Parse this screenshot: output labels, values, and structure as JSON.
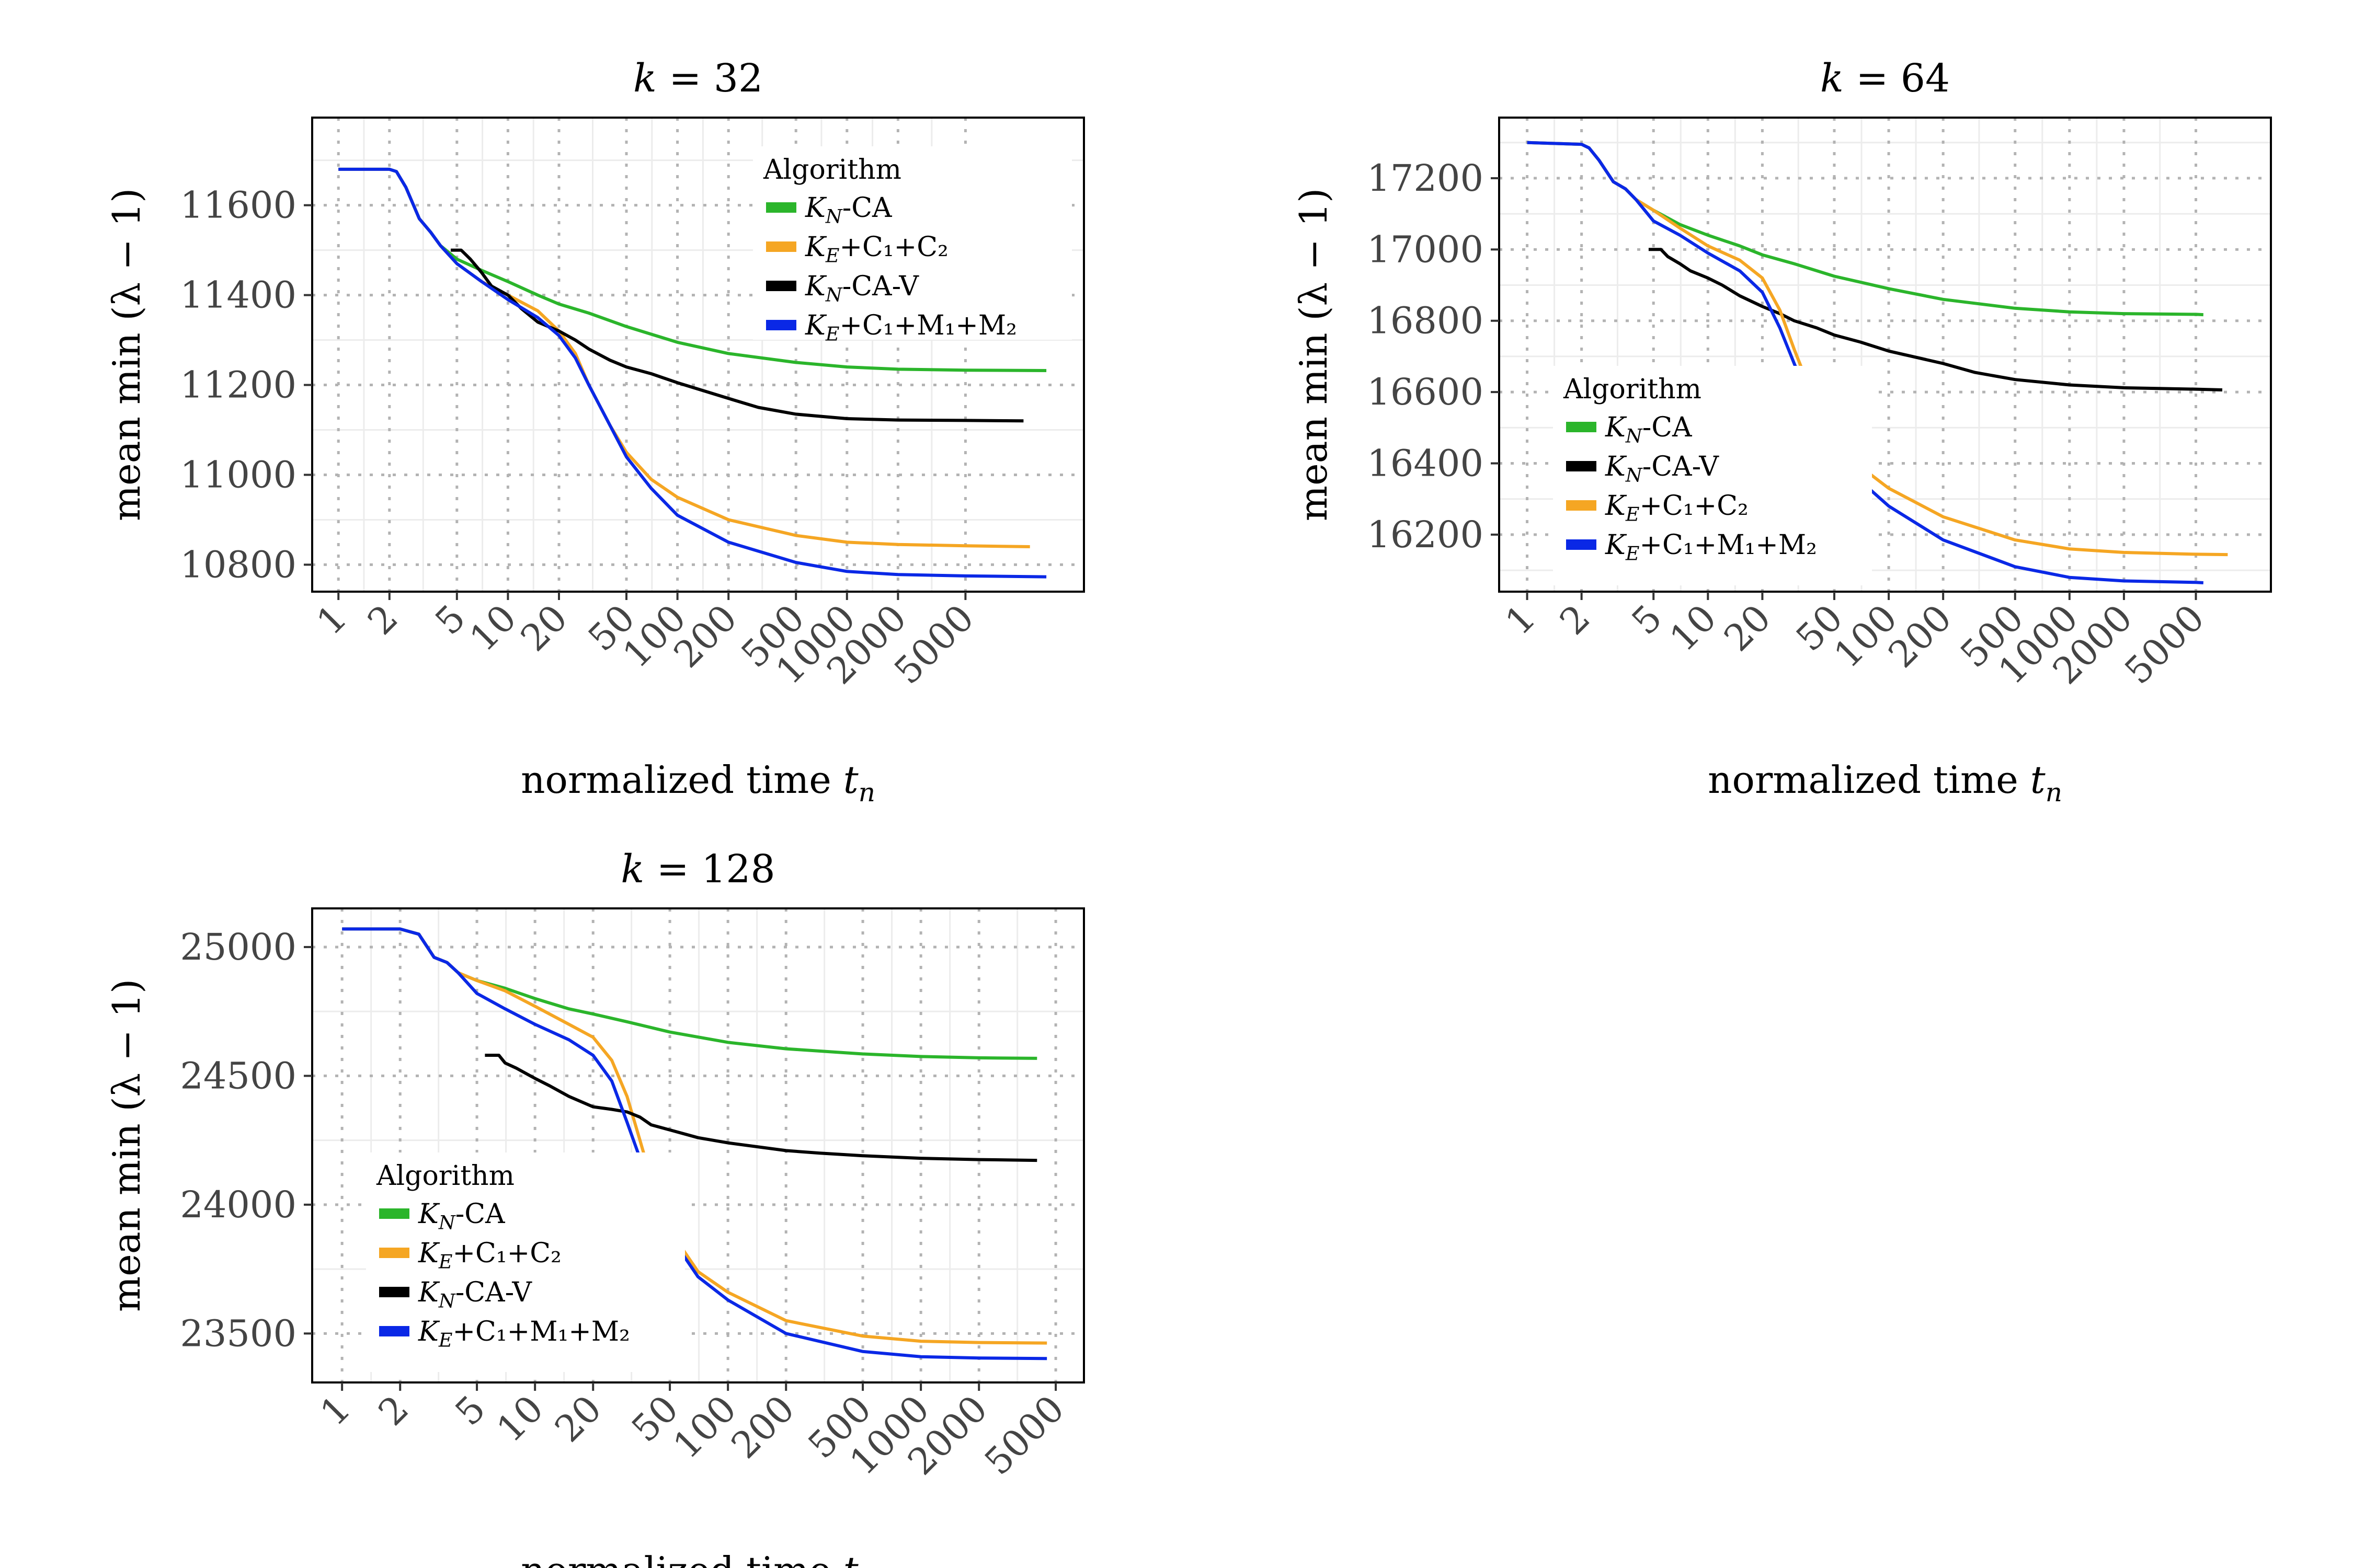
{
  "chart_data": [
    {
      "type": "line",
      "title": "k = 32",
      "xlabel": "normalized time t_n",
      "ylabel": "mean min (λ − 1)",
      "x_scale": "log",
      "xlim": [
        0.7,
        25000
      ],
      "ylim": [
        10740,
        11795
      ],
      "x_ticks": [
        1,
        2,
        5,
        10,
        20,
        50,
        100,
        200,
        500,
        1000,
        2000,
        5000
      ],
      "y_ticks": [
        10800,
        11000,
        11200,
        11400,
        11600
      ],
      "grid": true,
      "legend": {
        "title": "Algorithm",
        "position": "top-right",
        "entries": [
          {
            "base": "K",
            "sub": "N",
            "rest": "-CA",
            "color": "#2bb52b"
          },
          {
            "base": "K",
            "sub": "E",
            "rest": "+C₁+C₂",
            "color": "#f5a623"
          },
          {
            "base": "K",
            "sub": "N",
            "rest": "-CA-V",
            "color": "#000000"
          },
          {
            "base": "K",
            "sub": "E",
            "rest": "+C₁+M₁+M₂",
            "color": "#0a28e6"
          }
        ]
      },
      "series": [
        {
          "name": "K_N-CA",
          "color": "#2bb52b",
          "x": [
            1,
            2,
            2.2,
            2.5,
            3,
            3.5,
            4,
            5,
            7,
            10,
            15,
            20,
            30,
            50,
            100,
            200,
            500,
            1000,
            2000,
            5000,
            15000
          ],
          "y": [
            11680,
            11680,
            11675,
            11640,
            11570,
            11540,
            11510,
            11480,
            11455,
            11430,
            11400,
            11380,
            11360,
            11330,
            11295,
            11270,
            11250,
            11240,
            11235,
            11233,
            11232
          ]
        },
        {
          "name": "K_E+C1+C2",
          "color": "#f5a623",
          "x": [
            1,
            2,
            2.2,
            2.5,
            3,
            3.5,
            4,
            5,
            7,
            10,
            15,
            20,
            25,
            30,
            40,
            50,
            70,
            100,
            200,
            500,
            1000,
            2000,
            5000,
            12000
          ],
          "y": [
            11680,
            11680,
            11675,
            11640,
            11570,
            11540,
            11510,
            11470,
            11430,
            11400,
            11365,
            11320,
            11270,
            11200,
            11110,
            11050,
            10990,
            10950,
            10900,
            10865,
            10850,
            10845,
            10842,
            10840
          ]
        },
        {
          "name": "K_N-CA-V",
          "color": "#000000",
          "x": [
            4.6,
            5.3,
            6,
            7,
            8,
            10,
            12,
            15,
            20,
            25,
            30,
            40,
            50,
            70,
            100,
            200,
            300,
            500,
            1000,
            2000,
            5000,
            11000
          ],
          "y": [
            11500,
            11500,
            11480,
            11450,
            11420,
            11400,
            11370,
            11340,
            11320,
            11300,
            11280,
            11255,
            11240,
            11225,
            11205,
            11170,
            11150,
            11135,
            11125,
            11122,
            11121,
            11120
          ]
        },
        {
          "name": "K_E+C1+M1+M2",
          "color": "#0a28e6",
          "x": [
            1,
            2,
            2.2,
            2.5,
            3,
            3.5,
            4,
            5,
            7,
            10,
            15,
            20,
            25,
            30,
            40,
            50,
            70,
            100,
            200,
            500,
            1000,
            2000,
            5000,
            15000
          ],
          "y": [
            11680,
            11680,
            11675,
            11640,
            11570,
            11540,
            11510,
            11470,
            11430,
            11390,
            11350,
            11310,
            11260,
            11200,
            11110,
            11040,
            10970,
            10910,
            10850,
            10805,
            10785,
            10778,
            10775,
            10773
          ]
        }
      ]
    },
    {
      "type": "line",
      "title": "k = 64",
      "xlabel": "normalized time t_n",
      "ylabel": "mean min (λ − 1)",
      "x_scale": "log",
      "xlim": [
        0.7,
        13000
      ],
      "ylim": [
        16040,
        17370
      ],
      "x_ticks": [
        1,
        2,
        5,
        10,
        20,
        50,
        100,
        200,
        500,
        1000,
        2000,
        5000
      ],
      "y_ticks": [
        16200,
        16400,
        16600,
        16800,
        17000,
        17200
      ],
      "grid": true,
      "legend": {
        "title": "Algorithm",
        "position": "middle-left",
        "entries": [
          {
            "base": "K",
            "sub": "N",
            "rest": "-CA",
            "color": "#2bb52b"
          },
          {
            "base": "K",
            "sub": "N",
            "rest": "-CA-V",
            "color": "#000000"
          },
          {
            "base": "K",
            "sub": "E",
            "rest": "+C₁+C₂",
            "color": "#f5a623"
          },
          {
            "base": "K",
            "sub": "E",
            "rest": "+C₁+M₁+M₂",
            "color": "#0a28e6"
          }
        ]
      },
      "series": [
        {
          "name": "K_N-CA",
          "color": "#2bb52b",
          "x": [
            1,
            2,
            2.2,
            2.5,
            3,
            3.5,
            4,
            5,
            7,
            10,
            15,
            20,
            30,
            50,
            100,
            200,
            500,
            1000,
            2000,
            5000,
            5500
          ],
          "y": [
            17300,
            17295,
            17285,
            17250,
            17190,
            17170,
            17140,
            17110,
            17070,
            17040,
            17010,
            16985,
            16960,
            16925,
            16890,
            16860,
            16835,
            16825,
            16820,
            16818,
            16817
          ]
        },
        {
          "name": "K_N-CA-V",
          "color": "#000000",
          "x": [
            4.7,
            5.5,
            6,
            7,
            8,
            10,
            12,
            15,
            20,
            25,
            30,
            40,
            50,
            70,
            100,
            200,
            300,
            500,
            1000,
            2000,
            5000,
            7000
          ],
          "y": [
            17000,
            17000,
            16980,
            16960,
            16940,
            16920,
            16900,
            16870,
            16840,
            16820,
            16800,
            16780,
            16760,
            16740,
            16715,
            16680,
            16655,
            16635,
            16620,
            16612,
            16608,
            16606
          ]
        },
        {
          "name": "K_E+C1+C2",
          "color": "#f5a623",
          "x": [
            1,
            2,
            2.2,
            2.5,
            3,
            3.5,
            4,
            5,
            7,
            10,
            15,
            20,
            25,
            30,
            40,
            50,
            70,
            100,
            200,
            500,
            1000,
            2000,
            5000,
            7500
          ],
          "y": [
            17300,
            17295,
            17285,
            17250,
            17190,
            17170,
            17140,
            17110,
            17060,
            17010,
            16970,
            16920,
            16830,
            16720,
            16560,
            16470,
            16390,
            16330,
            16250,
            16185,
            16160,
            16150,
            16145,
            16144
          ]
        },
        {
          "name": "K_E+C1+M1+M2",
          "color": "#0a28e6",
          "x": [
            1,
            2,
            2.2,
            2.5,
            3,
            3.5,
            4,
            5,
            7,
            10,
            15,
            20,
            25,
            30,
            40,
            50,
            70,
            100,
            200,
            500,
            1000,
            2000,
            5000,
            5500
          ],
          "y": [
            17300,
            17295,
            17285,
            17250,
            17190,
            17170,
            17140,
            17080,
            17040,
            16990,
            16940,
            16880,
            16780,
            16680,
            16530,
            16440,
            16350,
            16280,
            16185,
            16110,
            16080,
            16070,
            16066,
            16065
          ]
        }
      ]
    },
    {
      "type": "line",
      "title": "k = 128",
      "xlabel": "normalized time t_n",
      "ylabel": "mean min (λ − 1)",
      "x_scale": "log",
      "xlim": [
        0.7,
        7000
      ],
      "ylim": [
        23310,
        25150
      ],
      "x_ticks": [
        1,
        2,
        5,
        10,
        20,
        50,
        100,
        200,
        500,
        1000,
        2000,
        5000
      ],
      "y_ticks": [
        23500,
        24000,
        24500,
        25000
      ],
      "grid": true,
      "legend": {
        "title": "Algorithm",
        "position": "bottom-left",
        "entries": [
          {
            "base": "K",
            "sub": "N",
            "rest": "-CA",
            "color": "#2bb52b"
          },
          {
            "base": "K",
            "sub": "E",
            "rest": "+C₁+C₂",
            "color": "#f5a623"
          },
          {
            "base": "K",
            "sub": "N",
            "rest": "-CA-V",
            "color": "#000000"
          },
          {
            "base": "K",
            "sub": "E",
            "rest": "+C₁+M₁+M₂",
            "color": "#0a28e6"
          }
        ]
      },
      "series": [
        {
          "name": "K_N-CA",
          "color": "#2bb52b",
          "x": [
            1,
            2,
            2.5,
            3,
            3.5,
            4,
            5,
            7,
            10,
            15,
            20,
            30,
            50,
            100,
            200,
            500,
            1000,
            2000,
            4000
          ],
          "y": [
            25070,
            25070,
            25050,
            24960,
            24940,
            24900,
            24870,
            24840,
            24800,
            24760,
            24740,
            24710,
            24670,
            24630,
            24605,
            24585,
            24575,
            24570,
            24568
          ]
        },
        {
          "name": "K_E+C1+C2",
          "color": "#f5a623",
          "x": [
            1,
            2,
            2.5,
            3,
            3.5,
            4,
            5,
            7,
            10,
            15,
            20,
            25,
            30,
            35,
            40,
            50,
            70,
            100,
            200,
            500,
            1000,
            2000,
            4500
          ],
          "y": [
            25070,
            25070,
            25050,
            24960,
            24940,
            24900,
            24870,
            24830,
            24770,
            24700,
            24650,
            24560,
            24420,
            24250,
            24100,
            23900,
            23740,
            23660,
            23550,
            23490,
            23470,
            23465,
            23463
          ]
        },
        {
          "name": "K_N-CA-V",
          "color": "#000000",
          "x": [
            5.5,
            6.5,
            7,
            8,
            10,
            12,
            15,
            20,
            25,
            30,
            35,
            40,
            50,
            70,
            100,
            200,
            300,
            500,
            1000,
            2000,
            4000
          ],
          "y": [
            24580,
            24580,
            24550,
            24530,
            24490,
            24460,
            24420,
            24380,
            24370,
            24360,
            24340,
            24310,
            24290,
            24260,
            24240,
            24210,
            24200,
            24190,
            24180,
            24175,
            24172
          ]
        },
        {
          "name": "K_E+C1+M1+M2",
          "color": "#0a28e6",
          "x": [
            1,
            2,
            2.5,
            3,
            3.5,
            4,
            5,
            7,
            10,
            15,
            20,
            25,
            30,
            35,
            40,
            50,
            70,
            100,
            200,
            500,
            1000,
            2000,
            4500
          ],
          "y": [
            25070,
            25070,
            25050,
            24960,
            24940,
            24900,
            24820,
            24760,
            24700,
            24640,
            24580,
            24480,
            24320,
            24180,
            24060,
            23880,
            23720,
            23630,
            23500,
            23430,
            23410,
            23405,
            23403
          ]
        }
      ]
    }
  ]
}
